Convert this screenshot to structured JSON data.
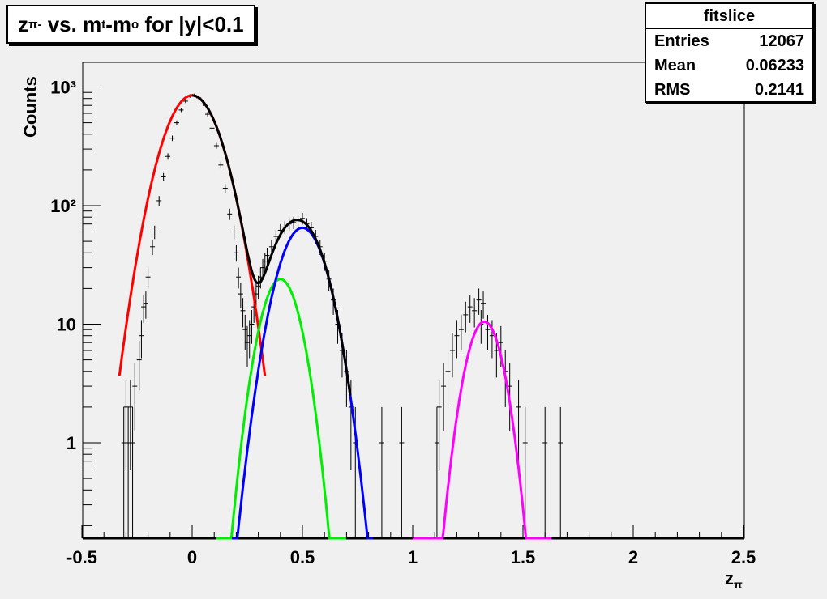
{
  "title": {
    "z": "z",
    "z_sub": "π-",
    "vs": " vs. m",
    "t_sub": "t",
    "minus": "-m",
    "o_sub": "o",
    "rest": " for |y|<0.1"
  },
  "stats": {
    "name": "fitslice",
    "rows": [
      {
        "label": "Entries",
        "value": "12067"
      },
      {
        "label": "Mean",
        "value": "0.06233"
      },
      {
        "label": "RMS",
        "value": "0.2141"
      }
    ]
  },
  "axes": {
    "xlabel": "z",
    "xlabel_sub": "π",
    "ylabel": "Counts",
    "xticks": [
      "-0.5",
      "0",
      "0.5",
      "1",
      "1.5",
      "2",
      "2.5"
    ],
    "yticks": [
      "1",
      "10",
      "10²",
      "10³"
    ]
  },
  "colors": {
    "background": "#f0f0f0",
    "total": "#000000",
    "pion": "#ff0000",
    "component2": "#00ee00",
    "component3": "#0000ff",
    "component4": "#ff00ff"
  },
  "chart_data": {
    "type": "scatter",
    "xlim": [
      -0.5,
      2.5
    ],
    "ylim": [
      0.15,
      1600
    ],
    "log_y": true,
    "grid": false,
    "points": [
      [
        -0.31,
        1
      ],
      [
        -0.3,
        2
      ],
      [
        -0.29,
        1
      ],
      [
        -0.28,
        2
      ],
      [
        -0.27,
        1
      ],
      [
        -0.26,
        3
      ],
      [
        -0.24,
        5
      ],
      [
        -0.23,
        8
      ],
      [
        -0.22,
        14
      ],
      [
        -0.21,
        15
      ],
      [
        -0.2,
        25
      ],
      [
        -0.18,
        45
      ],
      [
        -0.17,
        60
      ],
      [
        -0.15,
        110
      ],
      [
        -0.13,
        175
      ],
      [
        -0.11,
        260
      ],
      [
        -0.09,
        370
      ],
      [
        -0.07,
        500
      ],
      [
        -0.05,
        640
      ],
      [
        -0.03,
        760
      ],
      [
        -0.01,
        840
      ],
      [
        0.01,
        850
      ],
      [
        0.03,
        810
      ],
      [
        0.05,
        720
      ],
      [
        0.07,
        590
      ],
      [
        0.09,
        450
      ],
      [
        0.11,
        320
      ],
      [
        0.13,
        220
      ],
      [
        0.15,
        140
      ],
      [
        0.17,
        85
      ],
      [
        0.19,
        60
      ],
      [
        0.2,
        40
      ],
      [
        0.21,
        25
      ],
      [
        0.22,
        18
      ],
      [
        0.23,
        13
      ],
      [
        0.24,
        9
      ],
      [
        0.25,
        7
      ],
      [
        0.26,
        8
      ],
      [
        0.27,
        10
      ],
      [
        0.28,
        14
      ],
      [
        0.29,
        18
      ],
      [
        0.3,
        21
      ],
      [
        0.31,
        25
      ],
      [
        0.32,
        30
      ],
      [
        0.33,
        34
      ],
      [
        0.34,
        38
      ],
      [
        0.36,
        45
      ],
      [
        0.38,
        55
      ],
      [
        0.4,
        62
      ],
      [
        0.42,
        66
      ],
      [
        0.44,
        70
      ],
      [
        0.46,
        72
      ],
      [
        0.48,
        75
      ],
      [
        0.5,
        78
      ],
      [
        0.52,
        70
      ],
      [
        0.54,
        65
      ],
      [
        0.56,
        55
      ],
      [
        0.58,
        45
      ],
      [
        0.6,
        34
      ],
      [
        0.62,
        24
      ],
      [
        0.64,
        16
      ],
      [
        0.66,
        10
      ],
      [
        0.68,
        6
      ],
      [
        0.7,
        4
      ],
      [
        0.72,
        2
      ],
      [
        0.74,
        1
      ],
      [
        0.86,
        1
      ],
      [
        0.95,
        1
      ],
      [
        1.11,
        1
      ],
      [
        1.12,
        2
      ],
      [
        1.14,
        3
      ],
      [
        1.16,
        4
      ],
      [
        1.18,
        6
      ],
      [
        1.2,
        8
      ],
      [
        1.22,
        9
      ],
      [
        1.24,
        12
      ],
      [
        1.26,
        14
      ],
      [
        1.28,
        13
      ],
      [
        1.3,
        16
      ],
      [
        1.31,
        10
      ],
      [
        1.32,
        15
      ],
      [
        1.34,
        9
      ],
      [
        1.36,
        8
      ],
      [
        1.38,
        6
      ],
      [
        1.4,
        7
      ],
      [
        1.42,
        4
      ],
      [
        1.44,
        3
      ],
      [
        1.48,
        2
      ],
      [
        1.51,
        1
      ],
      [
        1.6,
        1
      ],
      [
        1.67,
        1
      ]
    ],
    "series": [
      {
        "mu": 0.0,
        "sigma": 0.1,
        "amp": 850,
        "xmin": -0.33,
        "xmax": 0.33
      },
      {
        "mu": 0.4,
        "sigma": 0.07,
        "amp": 24,
        "xmin": 0.11,
        "xmax": 0.7
      },
      {
        "mu": 0.5,
        "sigma": 0.085,
        "amp": 65,
        "xmin": 0.18,
        "xmax": 0.82
      },
      {
        "mu": 1.325,
        "sigma": 0.065,
        "amp": 10.5,
        "xmin": 1.0,
        "xmax": 1.63
      }
    ]
  }
}
